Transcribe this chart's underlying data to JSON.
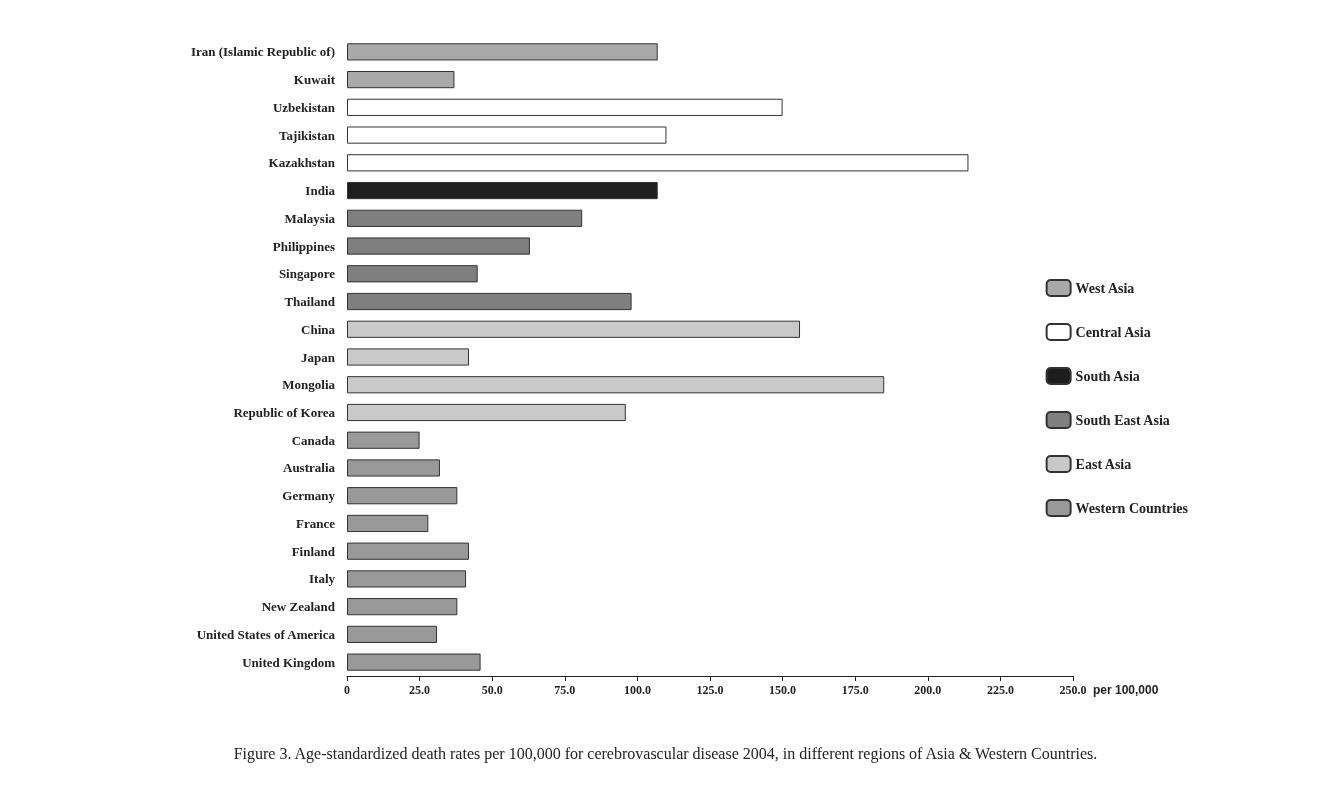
{
  "chart_data": {
    "type": "bar",
    "orientation": "horizontal",
    "stacked": true,
    "xlabel": "per 100,000",
    "categories": [
      "Iran (Islamic Republic of)",
      "Kuwait",
      "Uzbekistan",
      "Tajikistan",
      "Kazakhstan",
      "India",
      "Malaysia",
      "Philippines",
      "Singapore",
      "Thailand",
      "China",
      "Japan",
      "Mongolia",
      "Republic of Korea",
      "Canada",
      "Australia",
      "Germany",
      "France",
      "Finland",
      "Italy",
      "New Zealand",
      "United States of America",
      "United Kingdom"
    ],
    "series": [
      {
        "name": "West Asia",
        "color": "#a9a9a9",
        "values": [
          107,
          37,
          null,
          null,
          null,
          null,
          null,
          null,
          null,
          null,
          null,
          null,
          null,
          null,
          null,
          null,
          null,
          null,
          null,
          null,
          null,
          null,
          null
        ]
      },
      {
        "name": "Central Asia",
        "color": "#ffffff",
        "values": [
          null,
          null,
          150,
          110,
          214,
          null,
          null,
          null,
          null,
          null,
          null,
          null,
          null,
          null,
          null,
          null,
          null,
          null,
          null,
          null,
          null,
          null,
          null
        ]
      },
      {
        "name": "South Asia",
        "color": "#1e1e1e",
        "values": [
          null,
          null,
          null,
          null,
          null,
          107,
          null,
          null,
          null,
          null,
          null,
          null,
          null,
          null,
          null,
          null,
          null,
          null,
          null,
          null,
          null,
          null,
          null
        ]
      },
      {
        "name": "South East Asia",
        "color": "#7f7f7f",
        "values": [
          null,
          null,
          null,
          null,
          null,
          null,
          81,
          63,
          45,
          98,
          null,
          null,
          null,
          null,
          null,
          null,
          null,
          null,
          null,
          null,
          null,
          null,
          null
        ]
      },
      {
        "name": "East Asia",
        "color": "#c9c9c9",
        "values": [
          null,
          null,
          null,
          null,
          null,
          null,
          null,
          null,
          null,
          null,
          156,
          42,
          185,
          96,
          null,
          null,
          null,
          null,
          null,
          null,
          null,
          null,
          null
        ]
      },
      {
        "name": "Western Countries",
        "color": "#999999",
        "values": [
          null,
          null,
          null,
          null,
          null,
          null,
          null,
          null,
          null,
          null,
          null,
          null,
          null,
          null,
          25,
          32,
          38,
          28,
          42,
          41,
          38,
          31,
          46
        ]
      }
    ],
    "xlim": [
      0,
      250
    ],
    "xticks": [
      0,
      {
        "value": 25,
        "label": "25.0"
      },
      {
        "value": 50,
        "label": "50.0"
      },
      {
        "value": 75,
        "label": "75.0"
      },
      {
        "value": 100,
        "label": "100.0"
      },
      {
        "value": 125,
        "label": "125.0"
      },
      {
        "value": 150,
        "label": "150.0"
      },
      {
        "value": 175,
        "label": "175.0"
      },
      {
        "value": 200,
        "label": "200.0"
      },
      {
        "value": 225,
        "label": "225.0"
      },
      {
        "value": 250,
        "label": "250.0"
      }
    ],
    "grid": false,
    "legend": "right",
    "annotations": [
      "Figure 3. Age-standardized death rates per 100,000 for cerebrovascular disease 2004, in different regions of Asia & Western Countries."
    ]
  }
}
